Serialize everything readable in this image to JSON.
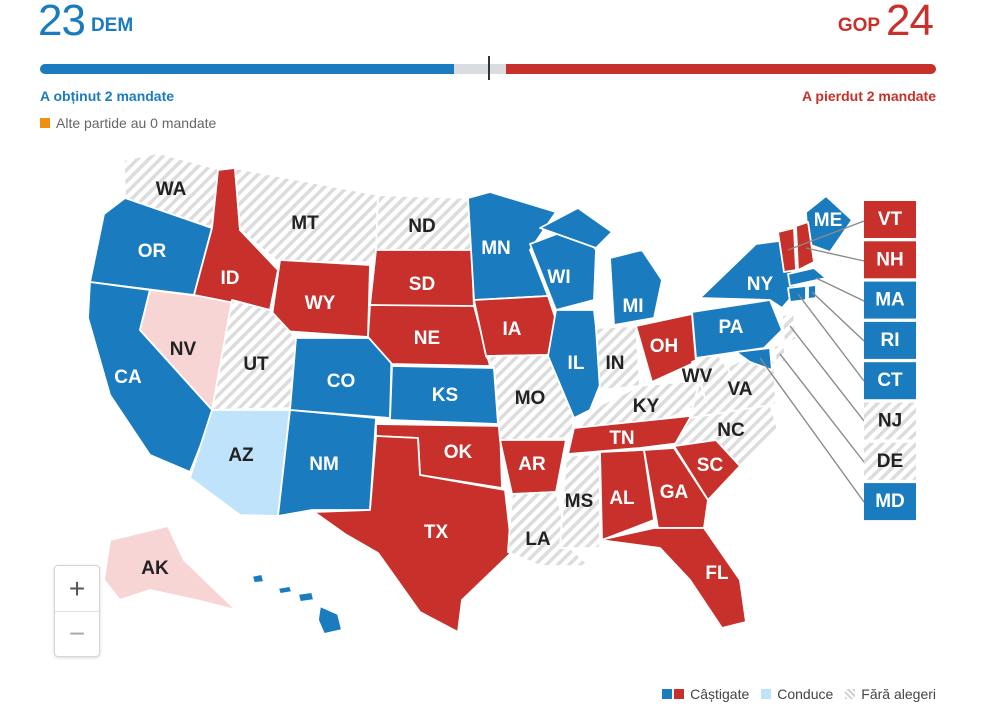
{
  "header": {
    "dem_count": "23",
    "dem_label": "DEM",
    "gop_label": "GOP",
    "gop_count": "24",
    "dem_change": "A obținut 2 mandate",
    "gop_change": "A pierdut 2 mandate",
    "others_text": "Alte partide au 0 mandate"
  },
  "progress": {
    "dem_fraction": 0.462,
    "gop_fraction": 0.48
  },
  "colors": {
    "dem_won": "#1a7bbf",
    "gop_won": "#c7302b",
    "dem_leading": "#bfe3fa",
    "gop_leading": "#f8d5d5",
    "no_election": "hatched-gray",
    "others": "#f0900e"
  },
  "states": [
    {
      "abbr": "WA",
      "status": "none"
    },
    {
      "abbr": "OR",
      "status": "dem"
    },
    {
      "abbr": "CA",
      "status": "dem"
    },
    {
      "abbr": "NV",
      "status": "gop-lead"
    },
    {
      "abbr": "ID",
      "status": "gop"
    },
    {
      "abbr": "MT",
      "status": "none"
    },
    {
      "abbr": "WY",
      "status": "gop"
    },
    {
      "abbr": "UT",
      "status": "none"
    },
    {
      "abbr": "AZ",
      "status": "dem-lead"
    },
    {
      "abbr": "CO",
      "status": "dem"
    },
    {
      "abbr": "NM",
      "status": "dem"
    },
    {
      "abbr": "ND",
      "status": "none"
    },
    {
      "abbr": "SD",
      "status": "gop"
    },
    {
      "abbr": "NE",
      "status": "gop"
    },
    {
      "abbr": "KS",
      "status": "dem"
    },
    {
      "abbr": "OK",
      "status": "gop"
    },
    {
      "abbr": "TX",
      "status": "gop"
    },
    {
      "abbr": "MN",
      "status": "dem"
    },
    {
      "abbr": "IA",
      "status": "gop"
    },
    {
      "abbr": "MO",
      "status": "none"
    },
    {
      "abbr": "AR",
      "status": "gop"
    },
    {
      "abbr": "LA",
      "status": "none"
    },
    {
      "abbr": "WI",
      "status": "dem"
    },
    {
      "abbr": "IL",
      "status": "dem"
    },
    {
      "abbr": "MI",
      "status": "dem"
    },
    {
      "abbr": "IN",
      "status": "none"
    },
    {
      "abbr": "OH",
      "status": "gop"
    },
    {
      "abbr": "KY",
      "status": "none"
    },
    {
      "abbr": "TN",
      "status": "gop"
    },
    {
      "abbr": "MS",
      "status": "none"
    },
    {
      "abbr": "AL",
      "status": "gop"
    },
    {
      "abbr": "GA",
      "status": "gop"
    },
    {
      "abbr": "FL",
      "status": "gop"
    },
    {
      "abbr": "SC",
      "status": "gop"
    },
    {
      "abbr": "NC",
      "status": "none"
    },
    {
      "abbr": "VA",
      "status": "none"
    },
    {
      "abbr": "WV",
      "status": "none"
    },
    {
      "abbr": "PA",
      "status": "dem"
    },
    {
      "abbr": "NY",
      "status": "dem"
    },
    {
      "abbr": "ME",
      "status": "dem"
    },
    {
      "abbr": "AK",
      "status": "gop-lead"
    },
    {
      "abbr": "HI",
      "status": "dem"
    }
  ],
  "small_states": [
    {
      "abbr": "VT",
      "status": "gop"
    },
    {
      "abbr": "NH",
      "status": "gop"
    },
    {
      "abbr": "MA",
      "status": "dem"
    },
    {
      "abbr": "RI",
      "status": "dem"
    },
    {
      "abbr": "CT",
      "status": "dem"
    },
    {
      "abbr": "NJ",
      "status": "none"
    },
    {
      "abbr": "DE",
      "status": "none"
    },
    {
      "abbr": "MD",
      "status": "dem"
    }
  ],
  "zoom": {
    "in_label": "+",
    "out_label": "−"
  },
  "legend": {
    "won": "Câștigate",
    "leading": "Conduce",
    "none": "Fără alegeri"
  }
}
